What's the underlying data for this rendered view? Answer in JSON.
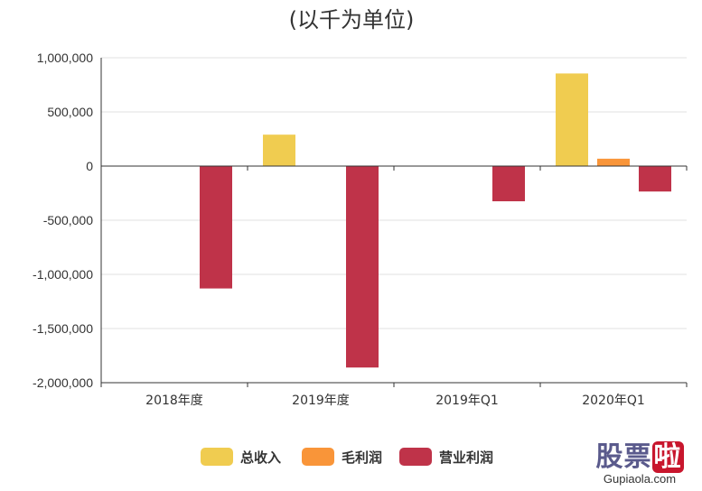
{
  "chart_data": {
    "type": "bar",
    "title": "(以千为单位)",
    "categories": [
      "2018年度",
      "2019年度",
      "2019年Q1",
      "2020年Q1"
    ],
    "series": [
      {
        "name": "总收入",
        "color": "#f0cc50",
        "values": [
          0,
          290000,
          0,
          855000
        ]
      },
      {
        "name": "毛利润",
        "color": "#f99539",
        "values": [
          0,
          0,
          0,
          68000
        ]
      },
      {
        "name": "营业利润",
        "color": "#bf3349",
        "values": [
          -1130000,
          -1860000,
          -325000,
          -235000
        ]
      }
    ],
    "y_ticks": [
      1000000,
      500000,
      0,
      -500000,
      -1000000,
      -1500000,
      -2000000
    ],
    "y_tick_labels": [
      "1,000,000",
      "500,000",
      "0",
      "-500,000",
      "-1,000,000",
      "-1,500,000",
      "-2,000,000"
    ],
    "ylim": [
      -2000000,
      1000000
    ],
    "grid": true,
    "legend_position": "bottom-center"
  },
  "watermark": {
    "chars": [
      "股",
      "票",
      "啦"
    ],
    "site": "Gupiaola.com"
  }
}
